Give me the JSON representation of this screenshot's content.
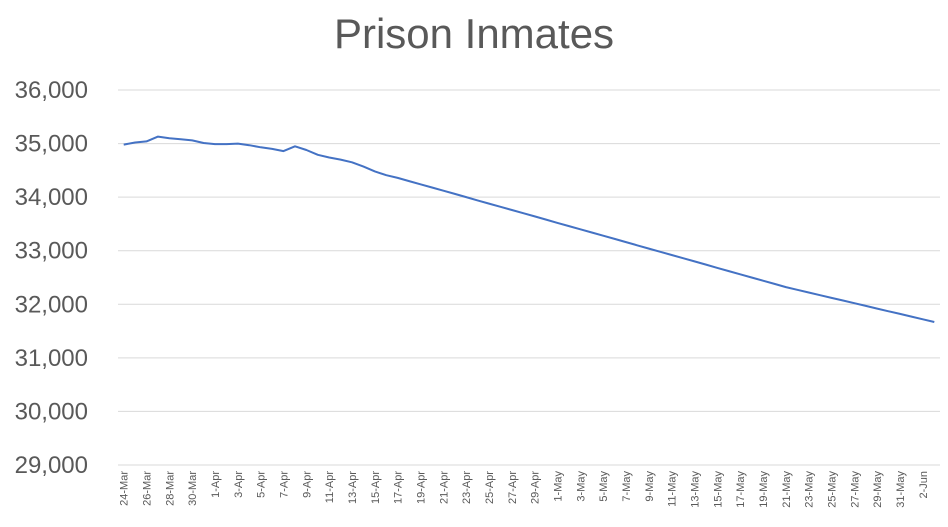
{
  "chart_data": {
    "type": "line",
    "title": "Prison Inmates",
    "xlabel": "",
    "ylabel": "",
    "ylim": [
      29000,
      36000
    ],
    "yticks": [
      "29,000",
      "30,000",
      "31,000",
      "32,000",
      "33,000",
      "34,000",
      "35,000",
      "36,000"
    ],
    "grid": true,
    "legend": "none",
    "line_color": "#4472c4",
    "x_labels": [
      "24-Mar",
      "26-Mar",
      "28-Mar",
      "30-Mar",
      "1-Apr",
      "3-Apr",
      "5-Apr",
      "7-Apr",
      "9-Apr",
      "11-Apr",
      "13-Apr",
      "15-Apr",
      "17-Apr",
      "19-Apr",
      "21-Apr",
      "23-Apr",
      "25-Apr",
      "27-Apr",
      "29-Apr",
      "1-May",
      "3-May",
      "5-May",
      "7-May",
      "9-May",
      "11-May",
      "13-May",
      "15-May",
      "17-May",
      "19-May",
      "21-May",
      "23-May",
      "25-May",
      "27-May",
      "29-May",
      "31-May",
      "2-Jun"
    ],
    "x": [
      "24-Mar",
      "25-Mar",
      "26-Mar",
      "27-Mar",
      "28-Mar",
      "29-Mar",
      "30-Mar",
      "31-Mar",
      "1-Apr",
      "2-Apr",
      "3-Apr",
      "4-Apr",
      "5-Apr",
      "6-Apr",
      "7-Apr",
      "8-Apr",
      "9-Apr",
      "10-Apr",
      "11-Apr",
      "12-Apr",
      "13-Apr",
      "14-Apr",
      "15-Apr",
      "16-Apr",
      "17-Apr",
      "18-Apr",
      "19-Apr",
      "20-Apr",
      "21-Apr",
      "22-Apr",
      "23-Apr",
      "24-Apr",
      "25-Apr",
      "26-Apr",
      "27-Apr",
      "28-Apr",
      "29-Apr",
      "30-Apr",
      "1-May",
      "2-May",
      "3-May",
      "4-May",
      "5-May",
      "6-May",
      "7-May",
      "8-May",
      "9-May",
      "10-May",
      "11-May",
      "12-May",
      "13-May",
      "14-May",
      "15-May",
      "16-May",
      "17-May",
      "18-May",
      "19-May",
      "20-May",
      "21-May",
      "22-May",
      "23-May",
      "24-May",
      "25-May",
      "26-May",
      "27-May",
      "28-May",
      "29-May",
      "30-May",
      "31-May",
      "1-Jun",
      "2-Jun",
      "3-Jun"
    ],
    "values": [
      34980,
      35020,
      35040,
      35130,
      35100,
      35080,
      35060,
      35010,
      34990,
      34990,
      35000,
      34970,
      34930,
      34900,
      34860,
      34950,
      34880,
      34790,
      34740,
      34700,
      34650,
      34570,
      34480,
      34410,
      34360,
      34300,
      34240,
      34180,
      34120,
      34060,
      34000,
      33940,
      33880,
      33820,
      33760,
      33700,
      33640,
      33580,
      33520,
      33460,
      33400,
      33340,
      33280,
      33220,
      33160,
      33100,
      33040,
      32980,
      32920,
      32860,
      32800,
      32740,
      32680,
      32620,
      32560,
      32500,
      32440,
      32380,
      32320,
      32270,
      32220,
      32170,
      32120,
      32070,
      32020,
      31970,
      31920,
      31870,
      31820,
      31770,
      31720,
      31670
    ]
  }
}
